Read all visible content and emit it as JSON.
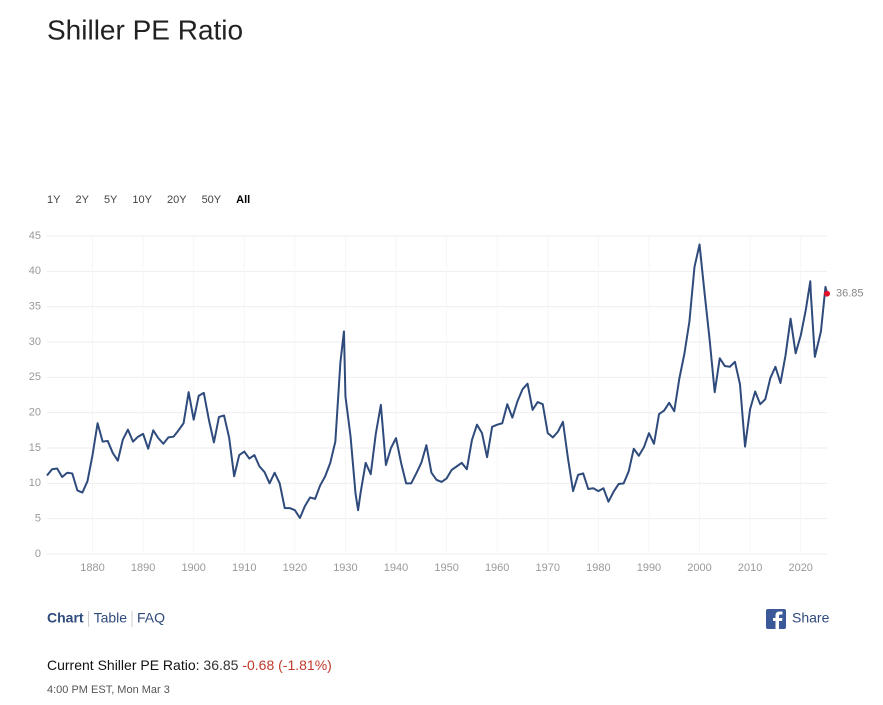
{
  "chart_data": {
    "type": "line",
    "title": "Shiller PE Ratio",
    "ranges": [
      "1Y",
      "2Y",
      "5Y",
      "10Y",
      "20Y",
      "50Y",
      "All"
    ],
    "active_range": 6,
    "tabs": [
      "Chart",
      "Table",
      "FAQ"
    ],
    "share": "Share",
    "current": {
      "label": "Current Shiller PE Ratio:",
      "value": "36.85",
      "change": "-0.68 (-1.81%)",
      "time": "4:00 PM EST, Mon Mar 3"
    },
    "x": [
      1871,
      1872,
      1873,
      1874,
      1875,
      1876,
      1877,
      1878,
      1879,
      1880,
      1881,
      1882,
      1883,
      1884,
      1885,
      1886,
      1887,
      1888,
      1889,
      1890,
      1891,
      1892,
      1893,
      1894,
      1895,
      1896,
      1897,
      1898,
      1899,
      1900,
      1901,
      1902,
      1903,
      1904,
      1905,
      1906,
      1907,
      1908,
      1909,
      1910,
      1911,
      1912,
      1913,
      1914,
      1915,
      1916,
      1917,
      1918,
      1919,
      1920,
      1921,
      1922,
      1923,
      1924,
      1925,
      1926,
      1927,
      1928,
      1929,
      1929.7,
      1930,
      1931,
      1932,
      1932.5,
      1933,
      1934,
      1935,
      1936,
      1937,
      1938,
      1939,
      1940,
      1941,
      1942,
      1943,
      1944,
      1945,
      1946,
      1947,
      1948,
      1949,
      1950,
      1951,
      1952,
      1953,
      1954,
      1955,
      1956,
      1957,
      1958,
      1959,
      1960,
      1961,
      1962,
      1963,
      1964,
      1965,
      1966,
      1967,
      1968,
      1969,
      1970,
      1971,
      1972,
      1973,
      1974,
      1975,
      1976,
      1977,
      1978,
      1979,
      1980,
      1981,
      1982,
      1983,
      1984,
      1985,
      1986,
      1987,
      1988,
      1989,
      1990,
      1991,
      1992,
      1993,
      1994,
      1995,
      1996,
      1997,
      1998,
      1999,
      2000,
      2001,
      2002,
      2003,
      2004,
      2005,
      2006,
      2007,
      2008,
      2009,
      2010,
      2011,
      2012,
      2013,
      2014,
      2015,
      2016,
      2017,
      2018,
      2019,
      2020,
      2021,
      2021.9,
      2022,
      2022.8,
      2023,
      2024,
      2024.9,
      2025.2
    ],
    "series": [
      {
        "color": "#2f4b7c",
        "values": [
          11.1,
          12.0,
          12.1,
          10.9,
          11.5,
          11.4,
          9.0,
          8.7,
          10.3,
          14.0,
          18.5,
          15.9,
          16.0,
          14.3,
          13.2,
          16.2,
          17.6,
          15.9,
          16.6,
          17.0,
          14.9,
          17.5,
          16.4,
          15.6,
          16.5,
          16.6,
          17.5,
          18.5,
          22.9,
          19.0,
          22.4,
          22.8,
          19.0,
          15.8,
          19.4,
          19.6,
          16.5,
          11.0,
          14.0,
          14.5,
          13.5,
          14.0,
          12.4,
          11.6,
          10.0,
          11.5,
          10.0,
          6.5,
          6.5,
          6.2,
          5.1,
          6.8,
          8.0,
          7.8,
          9.7,
          11.0,
          12.9,
          15.9,
          27.1,
          31.5,
          22.3,
          16.7,
          8.5,
          6.2,
          8.7,
          12.9,
          11.3,
          17.0,
          21.1,
          12.6,
          15.0,
          16.4,
          12.9,
          10.0,
          10.0,
          11.4,
          12.9,
          15.4,
          11.5,
          10.5,
          10.2,
          10.7,
          11.9,
          12.4,
          12.9,
          12.0,
          16.1,
          18.3,
          17.1,
          13.7,
          18.0,
          18.3,
          18.5,
          21.2,
          19.3,
          21.6,
          23.3,
          24.1,
          20.4,
          21.5,
          21.2,
          17.1,
          16.5,
          17.3,
          18.7,
          13.5,
          8.9,
          11.2,
          11.4,
          9.2,
          9.3,
          8.9,
          9.3,
          7.4,
          8.8,
          9.9,
          10.0,
          11.7,
          14.9,
          13.9,
          15.1,
          17.1,
          15.6,
          19.8,
          20.3,
          21.4,
          20.2,
          24.8,
          28.3,
          32.9,
          40.6,
          43.8,
          36.9,
          30.3,
          22.9,
          27.7,
          26.6,
          26.5,
          27.2,
          24.0,
          15.2,
          20.5,
          23.0,
          21.2,
          21.9,
          24.9,
          26.5,
          24.2,
          28.1,
          33.3,
          28.4,
          30.9,
          34.5,
          38.6,
          36.9,
          27.9,
          28.5,
          31.5,
          37.8,
          36.85
        ]
      }
    ],
    "last_color": "#e0102a",
    "xlim": [
      1871,
      2025.2
    ],
    "xticks": [
      1880,
      1890,
      1900,
      1910,
      1920,
      1930,
      1940,
      1950,
      1960,
      1970,
      1980,
      1990,
      2000,
      2010,
      2020
    ],
    "ylim": [
      0,
      45
    ],
    "yticks": [
      0,
      5,
      10,
      15,
      20,
      25,
      30,
      35,
      40,
      45
    ],
    "grid": true
  }
}
